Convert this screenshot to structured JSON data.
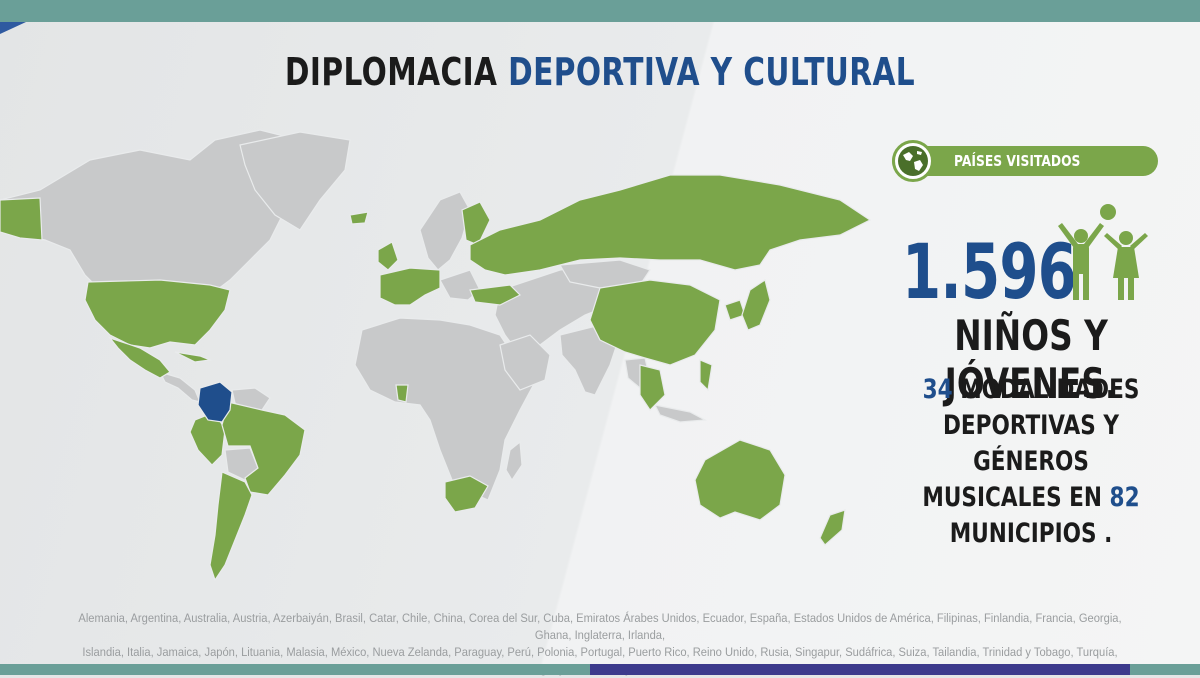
{
  "title": {
    "part1": "DIPLOMACIA",
    "part2": "DEPORTIVA Y CULTURAL"
  },
  "badge": {
    "label": "PAÍSES VISITADOS",
    "icon": "globe-icon"
  },
  "stats": {
    "number": "1.596",
    "ninos": "NIÑOS Y JÓVENES.",
    "modalidades_num": "34",
    "modalidades_text1": "MODALIDADES",
    "line2": "DEPORTIVAS Y GÉNEROS",
    "line3_text": "MUSICALES EN",
    "municipios_num": "82",
    "line4": "MUNICIPIOS ."
  },
  "countries_line1": "Alemania, Argentina, Australia, Austria, Azerbaiyán, Brasil, Catar, Chile, China, Corea del Sur, Cuba, Emiratos Árabes Unidos, Ecuador, España, Estados Unidos de América, Filipinas, Finlandia, Francia, Georgia, Ghana, Inglaterra, Irlanda,",
  "countries_line2": "Islandia, Italia, Jamaica, Japón, Lituania, Malasia, México, Nueva Zelanda, Paraguay, Perú, Polonia, Portugal, Puerto Rico, Reino Unido, Rusia, Singapur, Sudáfrica, Suiza, Tailandia, Trinidad y Tobago, Turquía, Uruguay, Venezuela y Vietnam.",
  "colors": {
    "visited": "#7ba64a",
    "home": "#1f4e8c",
    "not_visited": "#c8c9ca",
    "accent_blue": "#1f4e8c",
    "teal_bar": "#6a9f98"
  }
}
